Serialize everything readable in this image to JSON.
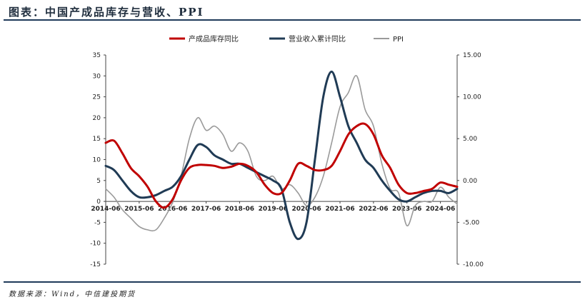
{
  "header": {
    "title": "图表：中国产成品库存与营收、PPI"
  },
  "footer": {
    "source": "数据来源：Wind，中信建投期货"
  },
  "chart_data": {
    "type": "line",
    "legend_position": "top-center",
    "grid": false,
    "x": [
      "2014-06",
      "2014-09",
      "2014-12",
      "2015-03",
      "2015-06",
      "2015-09",
      "2015-12",
      "2016-03",
      "2016-06",
      "2016-09",
      "2016-12",
      "2017-03",
      "2017-06",
      "2017-09",
      "2017-12",
      "2018-03",
      "2018-06",
      "2018-09",
      "2018-12",
      "2019-03",
      "2019-06",
      "2019-09",
      "2019-12",
      "2020-03",
      "2020-06",
      "2020-09",
      "2020-12",
      "2021-03",
      "2021-06",
      "2021-09",
      "2021-12",
      "2022-03",
      "2022-06",
      "2022-09",
      "2022-12",
      "2023-03",
      "2023-06",
      "2023-09",
      "2023-12",
      "2024-03",
      "2024-06",
      "2024-09",
      "2024-12"
    ],
    "xticks": [
      "2014-06",
      "2015-06",
      "2016-06",
      "2017-06",
      "2018-06",
      "2019-06",
      "2020-06",
      "2021-06",
      "2022-06",
      "2023-06",
      "2024-06"
    ],
    "y_left": {
      "ticks": [
        "35",
        "30",
        "25",
        "20",
        "15",
        "10",
        "5",
        "0",
        "-5",
        "-10",
        "-15"
      ],
      "range": [
        -15,
        35
      ]
    },
    "y_right": {
      "ticks": [
        "15.00",
        "10.00",
        "5.00",
        "0.00",
        "-5.00",
        "-10.00"
      ],
      "range": [
        -10,
        15
      ]
    },
    "series": [
      {
        "name": "产成品库存同比",
        "axis": "left",
        "color": "#c00000",
        "values": [
          14.0,
          14.5,
          11.5,
          8.0,
          6.0,
          3.5,
          0.0,
          -1.5,
          0.5,
          5.0,
          8.0,
          8.7,
          8.7,
          8.5,
          8.0,
          8.3,
          9.0,
          8.5,
          7.0,
          4.0,
          2.0,
          2.0,
          5.0,
          9.0,
          8.5,
          7.5,
          7.5,
          8.5,
          12.0,
          16.0,
          18.0,
          18.5,
          16.0,
          11.0,
          8.0,
          4.0,
          2.0,
          2.0,
          2.5,
          3.0,
          4.5,
          4.0,
          3.5
        ]
      },
      {
        "name": "营业收入累计同比",
        "axis": "left",
        "color": "#203b55",
        "values": [
          8.5,
          7.5,
          5.0,
          2.5,
          1.0,
          1.0,
          1.5,
          2.5,
          3.5,
          6.0,
          10.0,
          13.5,
          13.0,
          11.0,
          10.0,
          9.0,
          9.0,
          8.0,
          7.0,
          6.0,
          5.0,
          3.0,
          -5.0,
          -9.0,
          -5.0,
          10.0,
          25.0,
          31.0,
          25.0,
          18.0,
          14.0,
          10.0,
          8.0,
          5.0,
          2.5,
          0.5,
          0.0,
          1.0,
          2.0,
          2.5,
          2.5,
          2.0,
          3.0
        ]
      },
      {
        "name": "PPI",
        "axis": "right",
        "color": "#9a9a9a",
        "values": [
          -1.0,
          -2.0,
          -3.5,
          -4.5,
          -5.5,
          -5.9,
          -5.9,
          -4.5,
          -2.6,
          0.5,
          5.0,
          7.5,
          6.0,
          6.5,
          5.5,
          3.5,
          4.5,
          3.5,
          0.5,
          0.0,
          0.5,
          -1.0,
          -0.5,
          -1.5,
          -3.0,
          -2.0,
          0.5,
          4.5,
          8.8,
          10.5,
          12.5,
          8.5,
          6.5,
          2.0,
          -1.0,
          -1.5,
          -5.4,
          -3.0,
          -2.5,
          -2.5,
          -0.8,
          -2.0,
          -2.8
        ]
      }
    ]
  }
}
